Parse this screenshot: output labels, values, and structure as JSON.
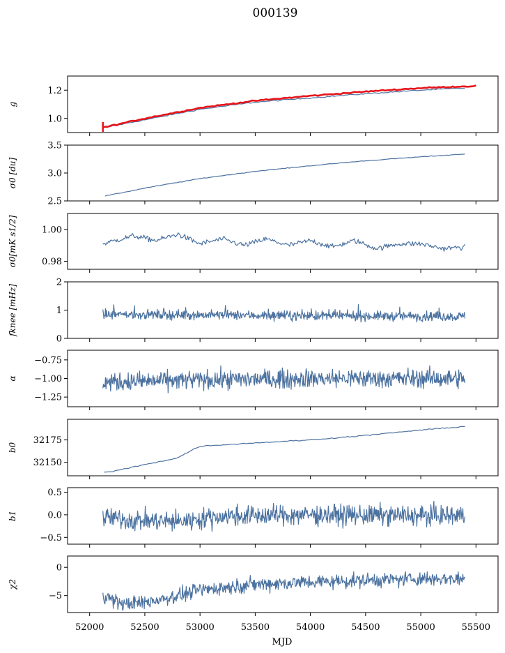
{
  "title": "000139",
  "colors": {
    "series": "#4c72a0",
    "highlight": "#e8141a"
  },
  "x_axis": {
    "label": "MJD",
    "range": [
      51800,
      55700
    ],
    "ticks": [
      52000,
      52500,
      53000,
      53500,
      54000,
      54500,
      55000,
      55500
    ],
    "tick_labels": [
      "52000",
      "52500",
      "53000",
      "53500",
      "54000",
      "54500",
      "55000",
      "55500"
    ]
  },
  "chart_data": [
    {
      "type": "line",
      "ylabel": "g",
      "ylim": [
        0.9,
        1.3
      ],
      "yticks": [
        1.0,
        1.2
      ],
      "ytick_labels": [
        "1.0",
        "1.2"
      ],
      "series": [
        {
          "x": [
            52130,
            52500,
            53000,
            53500,
            54000,
            54500,
            55000,
            55400
          ],
          "y": [
            0.935,
            0.99,
            1.065,
            1.115,
            1.145,
            1.175,
            1.2,
            1.215
          ]
        },
        {
          "x": [
            52120,
            52500,
            53000,
            53500,
            54000,
            54500,
            55000,
            55500
          ],
          "y": [
            0.935,
            1.0,
            1.075,
            1.125,
            1.16,
            1.19,
            1.215,
            1.23
          ]
        }
      ]
    },
    {
      "type": "line",
      "ylabel": "σ0 [du]",
      "ylim": [
        2.5,
        3.5
      ],
      "yticks": [
        2.5,
        3.0,
        3.5
      ],
      "ytick_labels": [
        "2.5",
        "3.0",
        "3.5"
      ],
      "series": [
        {
          "x": [
            52140,
            52250,
            52500,
            53000,
            53500,
            54000,
            54500,
            55000,
            55400
          ],
          "y": [
            2.59,
            2.63,
            2.73,
            2.9,
            3.03,
            3.13,
            3.22,
            3.29,
            3.34
          ]
        }
      ]
    },
    {
      "type": "line",
      "ylabel": "σ0[mK s1/2]",
      "ylim": [
        0.975,
        1.01
      ],
      "yticks": [
        0.98,
        1.0
      ],
      "ytick_labels": [
        "0.98",
        "1.00"
      ],
      "series": [
        {
          "x": [
            52120,
            52400,
            52600,
            52800,
            53000,
            53200,
            53400,
            53600,
            53800,
            54000,
            54200,
            54400,
            54600,
            54800,
            55000,
            55200,
            55400
          ],
          "y": [
            0.991,
            0.996,
            0.993,
            0.997,
            0.991,
            0.994,
            0.99,
            0.994,
            0.99,
            0.993,
            0.989,
            0.993,
            0.988,
            0.991,
            0.991,
            0.988,
            0.989
          ]
        }
      ]
    },
    {
      "type": "line",
      "ylabel": "fknee [mHz]",
      "ylim": [
        0,
        2
      ],
      "yticks": [
        0,
        1,
        2
      ],
      "ytick_labels": [
        "0",
        "1",
        "2"
      ],
      "series": [
        {
          "x": [
            52120,
            53000,
            54000,
            55000,
            55400
          ],
          "y": [
            0.85,
            0.83,
            0.8,
            0.78,
            0.77
          ]
        }
      ]
    },
    {
      "type": "line",
      "ylabel": "α",
      "ylim": [
        -1.38,
        -0.62
      ],
      "yticks": [
        -1.25,
        -1.0,
        -0.75
      ],
      "ytick_labels": [
        "−1.25",
        "−1.00",
        "−0.75"
      ],
      "series": [
        {
          "x": [
            52120,
            53000,
            54000,
            55000,
            55400
          ],
          "y": [
            -1.05,
            -1.02,
            -1.0,
            -1.0,
            -1.0
          ]
        }
      ]
    },
    {
      "type": "line",
      "ylabel": "b0",
      "ylim": [
        32135,
        32198
      ],
      "yticks": [
        32150,
        32175
      ],
      "ytick_labels": [
        "32150",
        "32175"
      ],
      "series": [
        {
          "x": [
            52130,
            52200,
            52400,
            52600,
            52800,
            52900,
            53000,
            53400,
            54000,
            54500,
            55000,
            55400
          ],
          "y": [
            32139,
            32139.5,
            32145,
            32150,
            32155,
            32162,
            32168,
            32171,
            32175,
            32180,
            32186,
            32190
          ]
        }
      ]
    },
    {
      "type": "line",
      "ylabel": "b1",
      "ylim": [
        -0.65,
        0.6
      ],
      "yticks": [
        -0.5,
        0.0,
        0.5
      ],
      "ytick_labels": [
        "−0.5",
        "0.0",
        "0.5"
      ],
      "series": [
        {
          "x": [
            52120,
            52400,
            52800,
            53200,
            54000,
            55000,
            55400
          ],
          "y": [
            -0.05,
            -0.12,
            -0.15,
            -0.03,
            0.0,
            -0.02,
            -0.02
          ]
        }
      ]
    },
    {
      "type": "line",
      "ylabel": "χ2",
      "ylim": [
        -8,
        2
      ],
      "yticks": [
        -5,
        0
      ],
      "ytick_labels": [
        "−5",
        "0"
      ],
      "series": [
        {
          "x": [
            52120,
            52300,
            52500,
            52800,
            53000,
            53500,
            54000,
            54500,
            55000,
            55400
          ],
          "y": [
            -5.0,
            -6.5,
            -6.2,
            -5.0,
            -4.0,
            -3.0,
            -2.6,
            -2.3,
            -2.0,
            -2.0
          ]
        }
      ]
    }
  ]
}
